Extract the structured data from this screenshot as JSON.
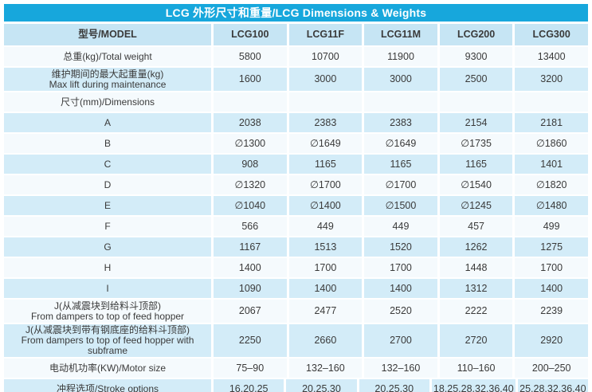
{
  "title": "LCG 外形尺寸和重量/LCG Dimensions & Weights",
  "colors": {
    "title_bar": "#17a7dc",
    "title_text": "#ffffff",
    "header_row": "#c6e5f4",
    "row_blue": "#d3ecf8",
    "row_white": "#f5fafd",
    "text": "#3a3a3a"
  },
  "table": {
    "columns": [
      "型号/MODEL",
      "LCG100",
      "LCG11F",
      "LCG11M",
      "LCG200",
      "LCG300"
    ],
    "rows": [
      {
        "label": [
          "总重(kg)/Total weight"
        ],
        "values": [
          "5800",
          "10700",
          "11900",
          "9300",
          "13400"
        ]
      },
      {
        "label": [
          "维护期间的最大起重量(kg)",
          "Max lift during maintenance"
        ],
        "values": [
          "1600",
          "3000",
          "3000",
          "2500",
          "3200"
        ]
      },
      {
        "label": [
          "尺寸(mm)/Dimensions"
        ],
        "values": [
          "",
          "",
          "",
          "",
          ""
        ]
      },
      {
        "label": [
          "A"
        ],
        "values": [
          "2038",
          "2383",
          "2383",
          "2154",
          "2181"
        ]
      },
      {
        "label": [
          "B"
        ],
        "values": [
          "∅1300",
          "∅1649",
          "∅1649",
          "∅1735",
          "∅1860"
        ]
      },
      {
        "label": [
          "C"
        ],
        "values": [
          "908",
          "1165",
          "1165",
          "1165",
          "1401"
        ]
      },
      {
        "label": [
          "D"
        ],
        "values": [
          "∅1320",
          "∅1700",
          "∅1700",
          "∅1540",
          "∅1820"
        ]
      },
      {
        "label": [
          "E"
        ],
        "values": [
          "∅1040",
          "∅1400",
          "∅1500",
          "∅1245",
          "∅1480"
        ]
      },
      {
        "label": [
          "F"
        ],
        "values": [
          "566",
          "449",
          "449",
          "457",
          "499"
        ]
      },
      {
        "label": [
          "G"
        ],
        "values": [
          "1167",
          "1513",
          "1520",
          "1262",
          "1275"
        ]
      },
      {
        "label": [
          "H"
        ],
        "values": [
          "1400",
          "1700",
          "1700",
          "1448",
          "1700"
        ]
      },
      {
        "label": [
          "I"
        ],
        "values": [
          "1090",
          "1400",
          "1400",
          "1312",
          "1400"
        ]
      },
      {
        "label": [
          "J(从减震块到给料斗顶部)",
          "From dampers to top of feed hopper"
        ],
        "values": [
          "2067",
          "2477",
          "2520",
          "2222",
          "2239"
        ]
      },
      {
        "label": [
          "J(从减震块到带有钢底座的给料斗顶部)",
          "From dampers to top of feed hopper with subframe"
        ],
        "values": [
          "2250",
          "2660",
          "2700",
          "2720",
          "2920"
        ]
      },
      {
        "label": [
          "电动机功率(KW)/Motor size"
        ],
        "values": [
          "75–90",
          "132–160",
          "132–160",
          "110–160",
          "200–250"
        ]
      },
      {
        "label": [
          "冲程选项/Stroke options"
        ],
        "values": [
          "16,20,25",
          "20,25,30",
          "20,25,30",
          "18,25,28,32,36,40",
          "25,28,32,36,40"
        ]
      }
    ]
  }
}
